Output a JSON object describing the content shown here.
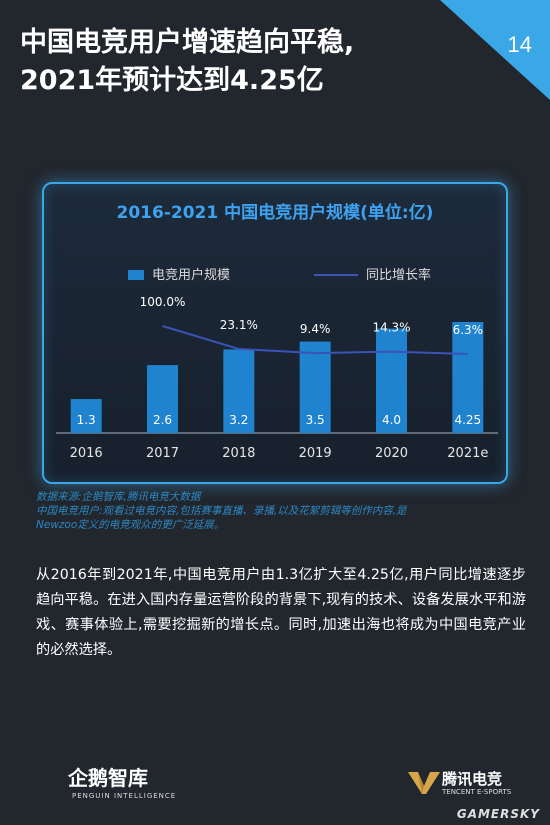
{
  "page": {
    "title_line1": "中国电竞用户增速趋向平稳,",
    "title_line2": "2021年预计达到4.25亿",
    "page_number": "14"
  },
  "chart_data": {
    "type": "bar",
    "title": "2016-2021 中国电竞用户规模(单位:亿)",
    "categories": [
      "2016",
      "2017",
      "2018",
      "2019",
      "2020",
      "2021e"
    ],
    "series": [
      {
        "name": "电竞用户规模",
        "type": "bar",
        "values": [
          1.3,
          2.6,
          3.2,
          3.5,
          4.0,
          4.25
        ],
        "labels": [
          "1.3",
          "2.6",
          "3.2",
          "3.5",
          "4.0",
          "4.25"
        ]
      },
      {
        "name": "同比增长率",
        "type": "line",
        "values": [
          null,
          100.0,
          23.1,
          9.4,
          14.3,
          6.3
        ],
        "labels": [
          "",
          "100.0%",
          "23.1%",
          "9.4%",
          "14.3%",
          "6.3%"
        ]
      }
    ],
    "colors": {
      "bar": "#1f83cf",
      "line": "#3b52b7",
      "title": "#3ea2f0"
    }
  },
  "notes": [
    "数据来源:企鹅智库,腾讯电竞大数据",
    "中国电竞用户:观看过电竞内容,包括赛事直播、录播,以及花絮剪辑等创作内容,是",
    "Newzoo定义的电竞观众的更广泛延展。"
  ],
  "body_text": "从2016年到2021年,中国电竞用户由1.3亿扩大至4.25亿,用户同比增速逐步趋向平稳。在进入国内存量运营阶段的背景下,现有的技术、设备发展水平和游戏、赛事体验上,需要挖掘新的增长点。同时,加速出海也将成为中国电竞产业的必然选择。",
  "brands": {
    "left_name": "企鹅智库",
    "left_sub": "PENGUIN INTELLIGENCE",
    "right_name": "腾讯电竞",
    "right_sub": "TENCENT E-SPORTS",
    "watermark": "GAMERSKY"
  }
}
